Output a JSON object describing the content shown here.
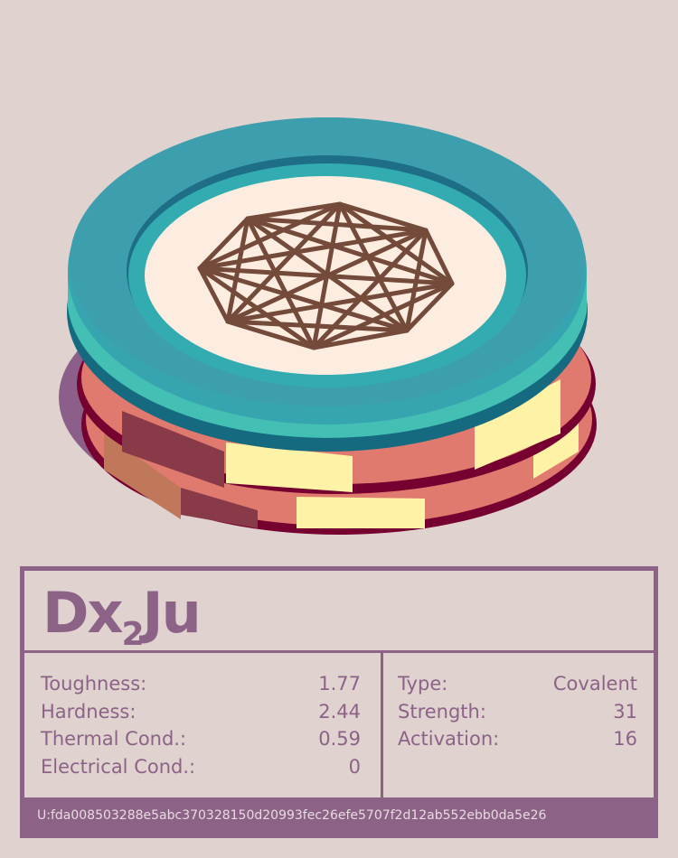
{
  "title": {
    "base": "Dx",
    "sub": "2",
    "rest": "Ju"
  },
  "left_stats": [
    {
      "label": "Toughness:",
      "value": "1.77"
    },
    {
      "label": "Hardness:",
      "value": "2.44"
    },
    {
      "label": "Thermal Cond.:",
      "value": "0.59"
    },
    {
      "label": "Electrical Cond.:",
      "value": "0"
    }
  ],
  "right_stats": [
    {
      "label": "Type:",
      "value": "Covalent"
    },
    {
      "label": "Strength:",
      "value": "31"
    },
    {
      "label": "Activation:",
      "value": "16"
    }
  ],
  "footer": "U:fda008503288e5abc370328150d20993fec26efe5707f2d12ab552ebb0da5e26",
  "colors": {
    "accent": "#8c6387",
    "teal": "#33a9b0",
    "chip": "#e07a6e",
    "stroke": "#744a3a"
  },
  "icon": "complete-graph-octagon-icon"
}
